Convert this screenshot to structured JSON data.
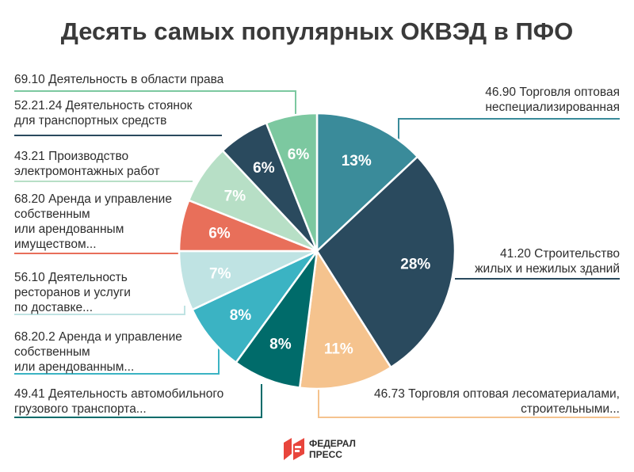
{
  "chart_data": {
    "type": "pie",
    "title": "Десять самых популярных ОКВЭД в ПФО",
    "slices": [
      {
        "label": [
          "46.90 Торговля оптовая",
          "неспециализированная"
        ],
        "value": 13,
        "display": "13%",
        "color": "#3a8b9a"
      },
      {
        "label": [
          "41.20 Строительство",
          "жилых и нежилых зданий"
        ],
        "value": 28,
        "display": "28%",
        "color": "#2a4a5e"
      },
      {
        "label": [
          "46.73 Торговля оптовая лесоматериалами,",
          "строительными..."
        ],
        "value": 11,
        "display": "11%",
        "color": "#f5c38e"
      },
      {
        "label": [
          "49.41 Деятельность автомобильного",
          "грузового транспорта..."
        ],
        "value": 8,
        "display": "8%",
        "color": "#006b6a"
      },
      {
        "label": [
          "68.20.2 Аренда и управление",
          "собственным",
          "или арендованным..."
        ],
        "value": 8,
        "display": "8%",
        "color": "#3bb3c3"
      },
      {
        "label": [
          "56.10 Деятельность",
          "ресторанов и услуги",
          "по доставке..."
        ],
        "value": 7,
        "display": "7%",
        "color": "#bfe3e3"
      },
      {
        "label": [
          "68.20 Аренда и управление",
          "собственным",
          "или арендованным",
          "имуществом..."
        ],
        "value": 6,
        "display": "6%",
        "color": "#e86f5a"
      },
      {
        "label": [
          "43.21 Производство",
          "электромонтажных работ"
        ],
        "value": 7,
        "display": "7%",
        "color": "#b7dfc6"
      },
      {
        "label": [
          "52.21.24 Деятельность стоянок",
          "для транспортных средств"
        ],
        "value": 6,
        "display": "6%",
        "color": "#2a4a5e"
      },
      {
        "label": [
          "69.10 Деятельность в области права"
        ],
        "value": 6,
        "display": "6%",
        "color": "#7cc8a0"
      }
    ]
  },
  "logo": {
    "line1": "ФЕДЕРАЛ",
    "line2": "ПРЕСС",
    "color": "#e8453c"
  }
}
